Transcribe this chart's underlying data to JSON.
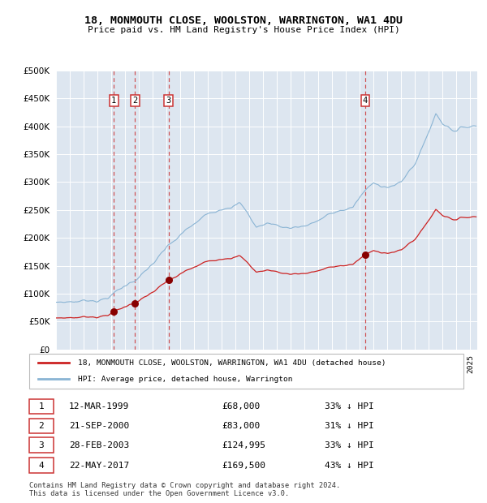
{
  "title": "18, MONMOUTH CLOSE, WOOLSTON, WARRINGTON, WA1 4DU",
  "subtitle": "Price paid vs. HM Land Registry's House Price Index (HPI)",
  "bg_color": "#dde6f0",
  "hpi_color": "#8ab4d4",
  "price_color": "#cc2222",
  "marker_color": "#880000",
  "dashed_color": "#cc3333",
  "ylim": [
    0,
    500000
  ],
  "yticks": [
    0,
    50000,
    100000,
    150000,
    200000,
    250000,
    300000,
    350000,
    400000,
    450000,
    500000
  ],
  "transactions": [
    {
      "num": 1,
      "date_label": "12-MAR-1999",
      "date_x": 1999.19,
      "price": 68000,
      "pct": "33%",
      "dir": "↓"
    },
    {
      "num": 2,
      "date_label": "21-SEP-2000",
      "date_x": 2000.72,
      "price": 83000,
      "pct": "31%",
      "dir": "↓"
    },
    {
      "num": 3,
      "date_label": "28-FEB-2003",
      "date_x": 2003.16,
      "price": 124995,
      "pct": "33%",
      "dir": "↓"
    },
    {
      "num": 4,
      "date_label": "22-MAY-2017",
      "date_x": 2017.39,
      "price": 169500,
      "pct": "43%",
      "dir": "↓"
    }
  ],
  "legend_label_price": "18, MONMOUTH CLOSE, WOOLSTON, WARRINGTON, WA1 4DU (detached house)",
  "legend_label_hpi": "HPI: Average price, detached house, Warrington",
  "footer": "Contains HM Land Registry data © Crown copyright and database right 2024.\nThis data is licensed under the Open Government Licence v3.0.",
  "xmin": 1995.0,
  "xmax": 2025.5
}
